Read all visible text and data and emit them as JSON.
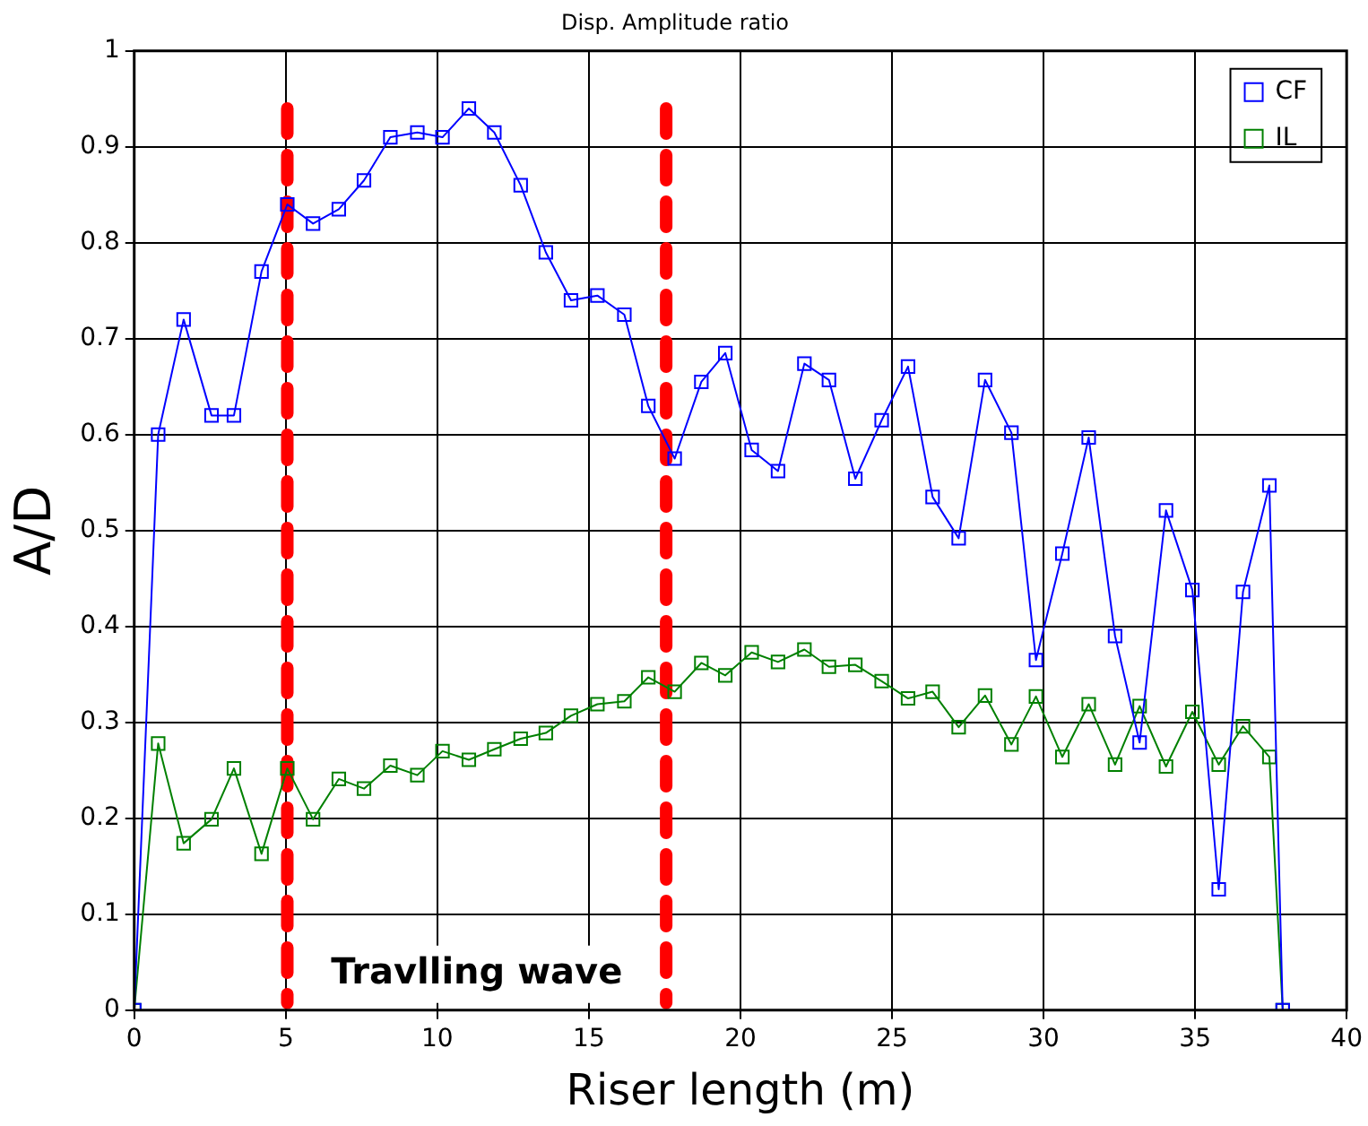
{
  "chart_data": {
    "type": "line",
    "title": "Disp. Amplitude ratio",
    "xlabel": "Riser length (m)",
    "ylabel": "A/D",
    "x": [
      0,
      0.79,
      1.63,
      2.55,
      3.29,
      4.2,
      5.05,
      5.9,
      6.75,
      7.58,
      8.45,
      9.34,
      10.17,
      11.04,
      11.88,
      12.75,
      13.58,
      14.41,
      15.28,
      16.17,
      16.96,
      17.83,
      18.71,
      19.5,
      20.37,
      21.24,
      22.11,
      22.92,
      23.79,
      24.66,
      25.53,
      26.34,
      27.2,
      28.07,
      28.94,
      29.75,
      30.62,
      31.49,
      32.36,
      33.17,
      34.04,
      34.91,
      35.78,
      36.58,
      37.45,
      37.89
    ],
    "series": [
      {
        "name": "CF",
        "color": "#0000ff",
        "values": [
          0,
          0.6,
          0.72,
          0.62,
          0.62,
          0.77,
          0.84,
          0.82,
          0.835,
          0.865,
          0.91,
          0.915,
          0.91,
          0.94,
          0.915,
          0.86,
          0.79,
          0.74,
          0.745,
          0.725,
          0.63,
          0.575,
          0.655,
          0.685,
          0.584,
          0.562,
          0.674,
          0.657,
          0.554,
          0.615,
          0.671,
          0.535,
          0.492,
          0.657,
          0.602,
          0.365,
          0.476,
          0.597,
          0.39,
          0.279,
          0.521,
          0.438,
          0.126,
          0.436,
          0.547,
          0
        ]
      },
      {
        "name": "IL",
        "color": "#008000",
        "values": [
          0,
          0.278,
          0.174,
          0.199,
          0.252,
          0.163,
          0.252,
          0.199,
          0.241,
          0.231,
          0.255,
          0.245,
          0.27,
          0.261,
          0.272,
          0.283,
          0.289,
          0.307,
          0.319,
          0.322,
          0.347,
          0.332,
          0.362,
          0.349,
          0.373,
          0.363,
          0.376,
          0.358,
          0.36,
          0.343,
          0.325,
          0.332,
          0.295,
          0.328,
          0.277,
          0.327,
          0.264,
          0.319,
          0.256,
          0.317,
          0.254,
          0.311,
          0.256,
          0.296,
          0.264,
          0
        ]
      }
    ],
    "xlim": [
      0,
      40
    ],
    "xticks": [
      0,
      5,
      10,
      15,
      20,
      25,
      30,
      35,
      40
    ],
    "ylim": [
      0,
      1
    ],
    "yticks": [
      0,
      0.1,
      0.2,
      0.3,
      0.4,
      0.5,
      0.6,
      0.7,
      0.8,
      0.9,
      1
    ],
    "ref_lines": [
      {
        "axis": "x",
        "value": 5.05,
        "color": "#ff0000",
        "line_style": "dashed"
      },
      {
        "axis": "x",
        "value": 17.55,
        "color": "#ff0000",
        "line_style": "dashed"
      }
    ],
    "annotations": [
      "Travlling wave"
    ],
    "grid": true,
    "legend": "top right",
    "marker": "square",
    "line_style": "solid"
  }
}
